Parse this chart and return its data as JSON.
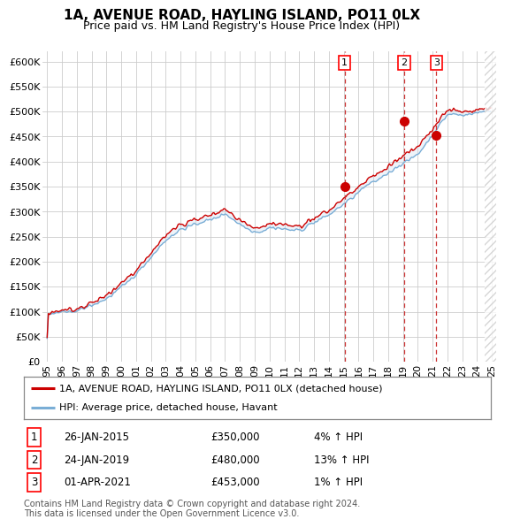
{
  "title": "1A, AVENUE ROAD, HAYLING ISLAND, PO11 0LX",
  "subtitle": "Price paid vs. HM Land Registry's House Price Index (HPI)",
  "ylim": [
    0,
    620000
  ],
  "yticks": [
    0,
    50000,
    100000,
    150000,
    200000,
    250000,
    300000,
    350000,
    400000,
    450000,
    500000,
    550000,
    600000
  ],
  "ytick_labels": [
    "£0",
    "£50K",
    "£100K",
    "£150K",
    "£200K",
    "£250K",
    "£300K",
    "£350K",
    "£400K",
    "£450K",
    "£500K",
    "£550K",
    "£600K"
  ],
  "hpi_color": "#7aaed6",
  "price_color": "#cc0000",
  "sale_marker_color": "#cc0000",
  "sale_vline_color": "#cc3333",
  "fill_color": "#c8d9ee",
  "background_color": "#ffffff",
  "grid_color": "#cccccc",
  "hatch_color": "#cccccc",
  "xlim_start": 1994.7,
  "xlim_end": 2025.3,
  "future_start": 2024.5,
  "sales": [
    {
      "date": 2015.07,
      "price": 350000,
      "label": "1",
      "display": "26-JAN-2015",
      "amount": "£350,000",
      "pct": "4% ↑ HPI"
    },
    {
      "date": 2019.07,
      "price": 480000,
      "label": "2",
      "display": "24-JAN-2019",
      "amount": "£480,000",
      "pct": "13% ↑ HPI"
    },
    {
      "date": 2021.25,
      "price": 453000,
      "label": "3",
      "display": "01-APR-2021",
      "amount": "£453,000",
      "pct": "1% ↑ HPI"
    }
  ],
  "legend_line1": "1A, AVENUE ROAD, HAYLING ISLAND, PO11 0LX (detached house)",
  "legend_line2": "HPI: Average price, detached house, Havant",
  "footnote": "Contains HM Land Registry data © Crown copyright and database right 2024.\nThis data is licensed under the Open Government Licence v3.0.",
  "title_fontsize": 11,
  "subtitle_fontsize": 9,
  "tick_fontsize": 8
}
